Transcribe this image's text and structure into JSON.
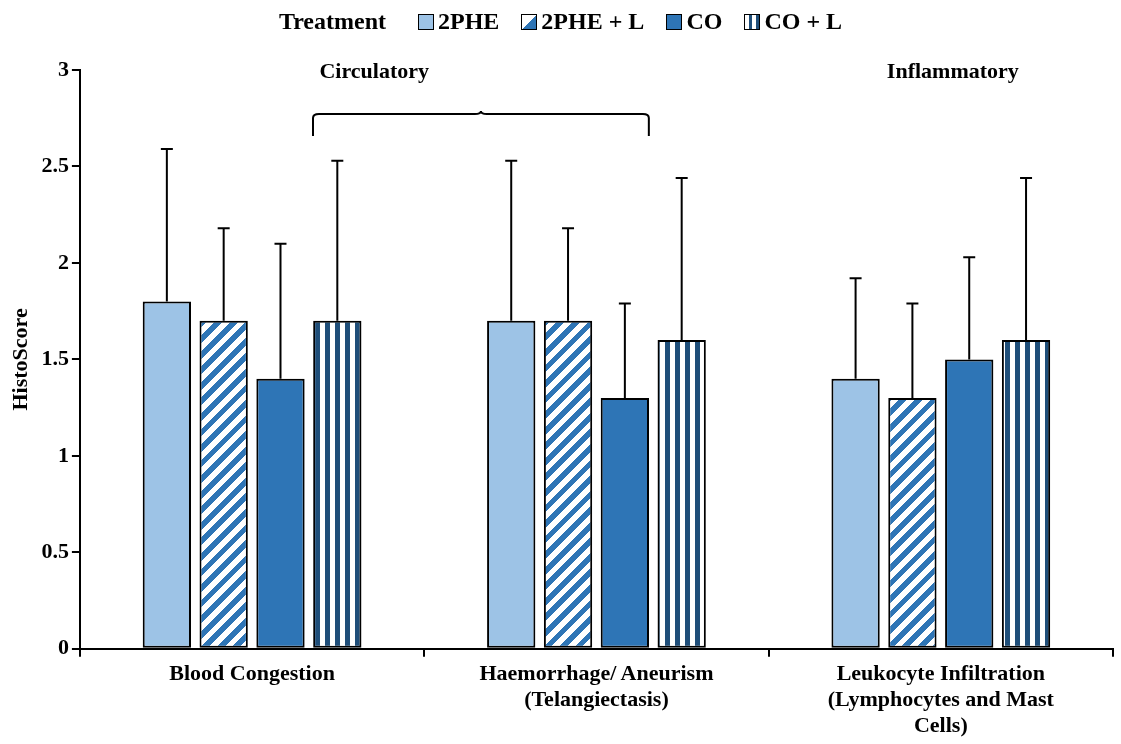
{
  "chart_data": {
    "type": "bar",
    "ylabel": "HistoScore",
    "legend_title": "Treatment",
    "legend": "top",
    "categories": [
      "Blood Congestion",
      "Haemorrhage/ Aneurism (Telangiectasis)",
      "Leukocyte Infiltration (Lymphocytes and Mast Cells)"
    ],
    "series": [
      {
        "name": "2PHE",
        "color": "#9dc3e6",
        "values": [
          1.8,
          1.7,
          1.4
        ],
        "errors": [
          [
            1.8,
            2.59
          ],
          [
            1.7,
            2.53
          ],
          [
            1.4,
            1.92
          ]
        ]
      },
      {
        "name": "2PHE + L",
        "color": "#2e75b6",
        "values": [
          1.7,
          1.7,
          1.3
        ],
        "errors": [
          [
            1.7,
            2.18
          ],
          [
            1.7,
            2.18
          ],
          [
            1.3,
            1.79
          ]
        ]
      },
      {
        "name": "CO",
        "color": "#2e75b6",
        "values": [
          1.4,
          1.3,
          1.5
        ],
        "errors": [
          [
            1.4,
            2.1
          ],
          [
            1.3,
            1.79
          ],
          [
            1.5,
            2.03
          ]
        ]
      },
      {
        "name": "CO + L",
        "color": "#1f4e79",
        "values": [
          1.7,
          1.6,
          1.6
        ],
        "errors": [
          [
            1.7,
            2.53
          ],
          [
            1.6,
            2.44
          ],
          [
            1.6,
            2.44
          ]
        ]
      }
    ],
    "ylim": [
      0,
      3
    ],
    "yticks": [
      0,
      0.5,
      1,
      1.5,
      2,
      2.5,
      3
    ],
    "grid": false,
    "annotations": [
      "Circulatory",
      "Inflammatory"
    ]
  }
}
